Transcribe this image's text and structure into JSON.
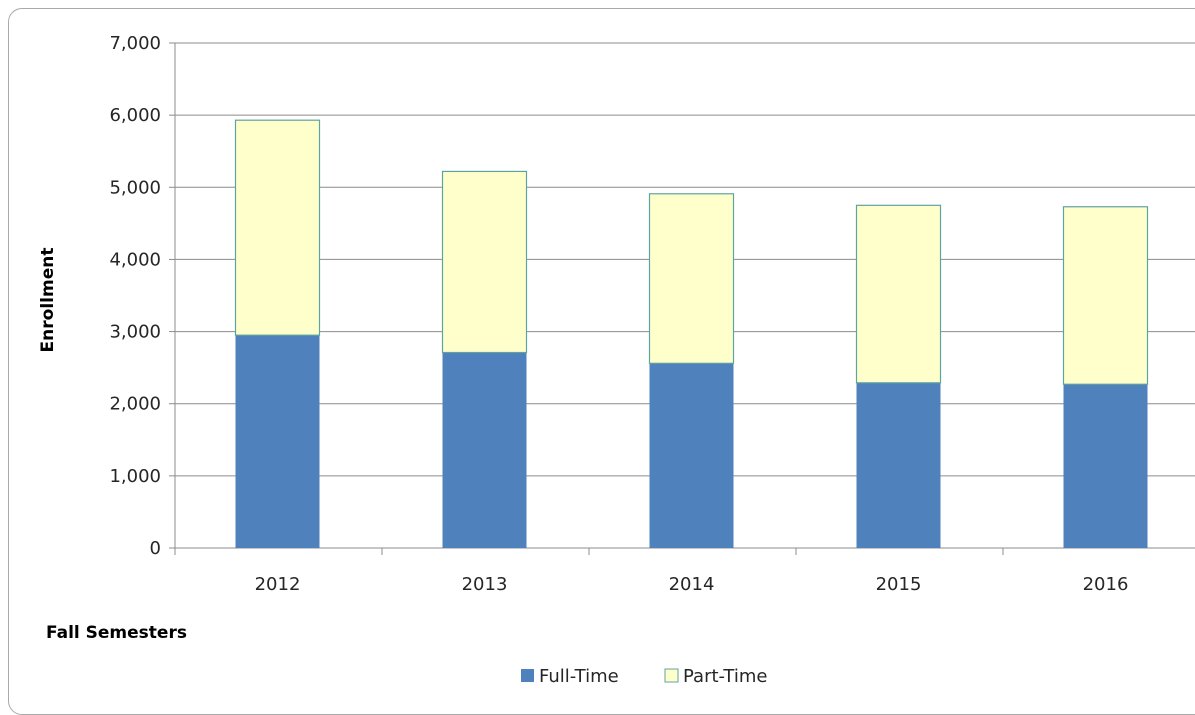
{
  "chart_data": {
    "type": "bar",
    "stacked": true,
    "title": "",
    "xlabel": "Fall Semesters",
    "ylabel": "Enrollment",
    "categories": [
      "2012",
      "2013",
      "2014",
      "2015",
      "2016"
    ],
    "series": [
      {
        "name": "Full-Time",
        "values": [
          2950,
          2710,
          2560,
          2290,
          2270
        ],
        "color": "#4f81bd"
      },
      {
        "name": "Part-Time",
        "values": [
          2980,
          2510,
          2350,
          2460,
          2460
        ],
        "color": "#ffffcc",
        "stroke": "#5fa3a0"
      }
    ],
    "ylim": [
      0,
      7000
    ],
    "yticks": [
      0,
      1000,
      2000,
      3000,
      4000,
      5000,
      6000,
      7000
    ],
    "ytick_labels": [
      "0",
      "1,000",
      "2,000",
      "3,000",
      "4,000",
      "5,000",
      "6,000",
      "7,000"
    ],
    "grid": true,
    "legend_position": "bottom"
  }
}
